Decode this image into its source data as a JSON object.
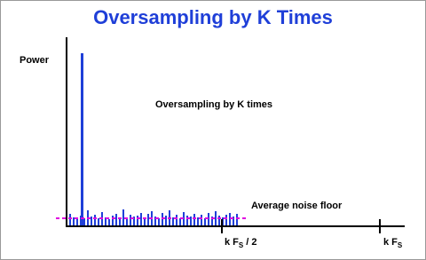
{
  "header": {
    "title": "Oversampling by K Times"
  },
  "axes": {
    "y_label": "Power"
  },
  "annotations": {
    "spectrum_label": "Oversampling by K times",
    "noise_floor_label": "Average  noise  floor"
  },
  "ticks": [
    {
      "label": "k F",
      "subscript": "S",
      "suffix": " / 2"
    },
    {
      "label": "k F",
      "subscript": "S"
    }
  ]
}
